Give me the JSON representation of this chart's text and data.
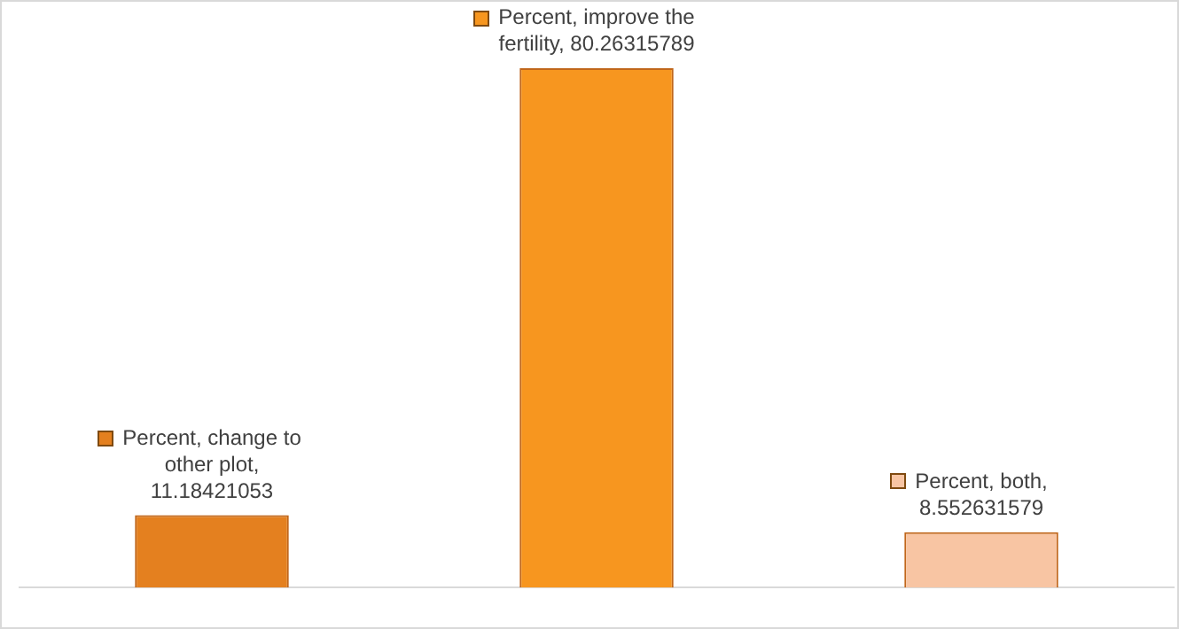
{
  "chart_data": {
    "type": "bar",
    "categories": [
      null,
      null,
      null
    ],
    "series": [
      {
        "values": [
          11.18421053,
          80.26315789,
          8.552631579
        ],
        "colors": [
          "#e4801f",
          "#f7961f",
          "#f8c5a3"
        ],
        "value_labels": [
          "Percent, change to other plot, 11.18421053",
          "Percent, improve the fertility, 80.26315789",
          "Percent, both, 8.552631579"
        ]
      }
    ],
    "relative": false,
    "grid": false,
    "legend": false
  }
}
